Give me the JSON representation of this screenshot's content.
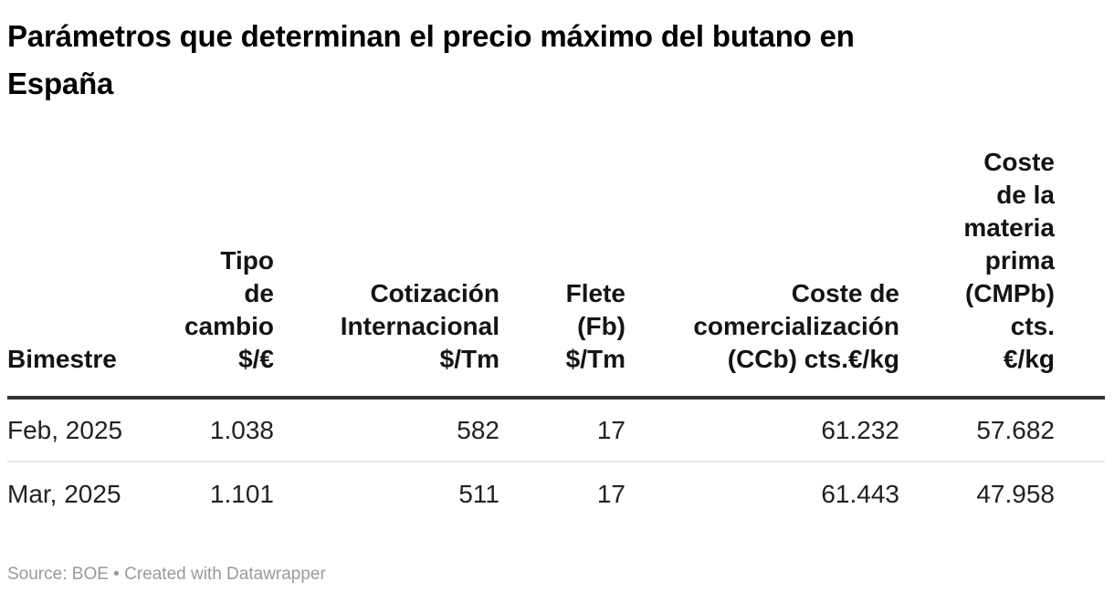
{
  "title": "Parámetros que determinan el precio máximo del butano en\nEspaña",
  "chart_data": {
    "type": "table",
    "title": "Parámetros que determinan el precio máximo del butano en España",
    "columns": [
      {
        "label": "Bimestre",
        "align": "left"
      },
      {
        "label": "Tipo\nde\ncambio\n$/€",
        "align": "right"
      },
      {
        "label": "Cotización\nInternacional\n$/Tm",
        "align": "right"
      },
      {
        "label": "Flete\n(Fb)\n$/Tm",
        "align": "right"
      },
      {
        "label": "Coste de\ncomercialización\n(CCb) cts.€/kg",
        "align": "right"
      },
      {
        "label": "Coste\nde la\nmateria\nprima\n(CMPb)\ncts.\n€/kg",
        "align": "right"
      }
    ],
    "rows": [
      [
        "Feb, 2025",
        "1.038",
        "582",
        "17",
        "61.232",
        "57.682"
      ],
      [
        "Mar, 2025",
        "1.101",
        "511",
        "17",
        "61.443",
        "47.958"
      ]
    ]
  },
  "footer": {
    "source_label": "Source:",
    "source": "BOE",
    "separator": "•",
    "credit": "Created with Datawrapper"
  },
  "colors": {
    "title_text": "#000000",
    "header_text": "#141414",
    "body_text": "#222222",
    "header_rule": "#333333",
    "row_divider": "#e8e8e8",
    "footer_text": "#9a9a9a",
    "background": "#ffffff"
  }
}
